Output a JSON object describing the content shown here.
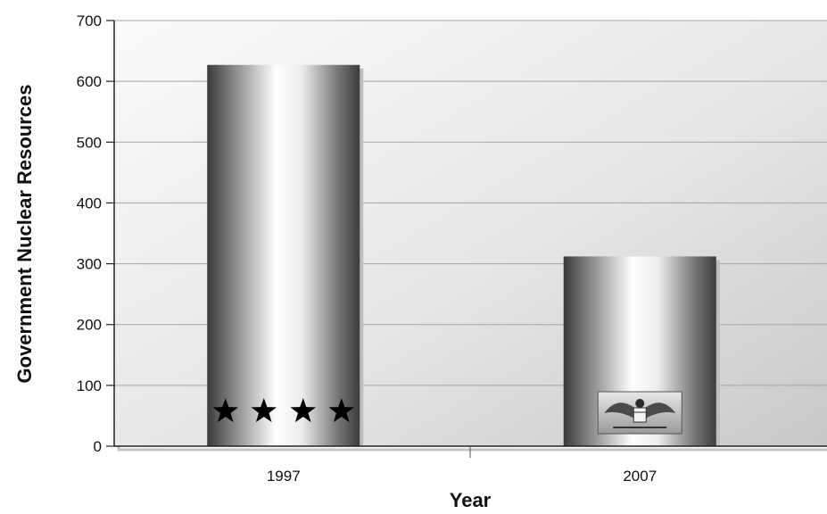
{
  "chart_data": {
    "type": "bar",
    "categories": [
      "1997",
      "2007"
    ],
    "values": [
      627,
      312
    ],
    "xlabel": "Year",
    "ylabel": "Government Nuclear Resources",
    "ylim": [
      0,
      700
    ],
    "yticks": [
      0,
      100,
      200,
      300,
      400,
      500,
      600,
      700
    ],
    "grid": true,
    "legend": "none",
    "bar_insignia": [
      "four-stars-icon",
      "eagle-insignia-icon"
    ],
    "colors": {
      "bar_dark": "#3a3a3a",
      "bar_light": "#ffffff",
      "plot_bg_light": "#fafafa",
      "plot_bg_dark": "#c8c8c8",
      "gridline": "#a0a0a0"
    }
  }
}
